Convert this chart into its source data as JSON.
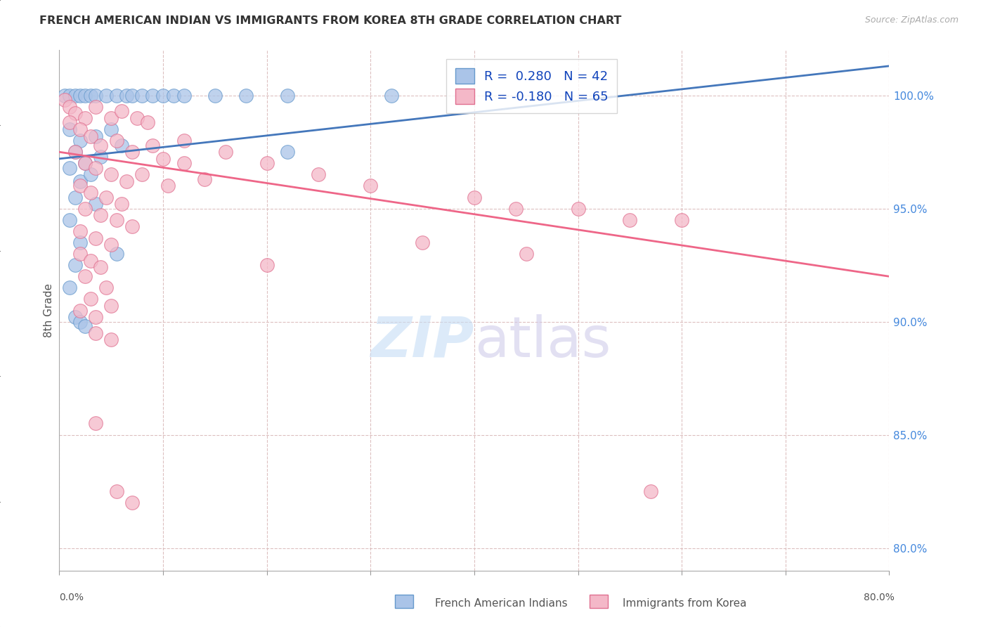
{
  "title": "FRENCH AMERICAN INDIAN VS IMMIGRANTS FROM KOREA 8TH GRADE CORRELATION CHART",
  "source": "Source: ZipAtlas.com",
  "ylabel": "8th Grade",
  "xmin": 0.0,
  "xmax": 80.0,
  "ymin": 79.0,
  "ymax": 102.0,
  "yticks": [
    80.0,
    85.0,
    90.0,
    95.0,
    100.0
  ],
  "ytick_labels": [
    "80.0%",
    "85.0%",
    "90.0%",
    "95.0%",
    "100.0%"
  ],
  "xticks": [
    0.0,
    10.0,
    20.0,
    30.0,
    40.0,
    50.0,
    60.0,
    70.0,
    80.0
  ],
  "blue_color": "#aac4e8",
  "pink_color": "#f4b8c8",
  "blue_edge_color": "#6699cc",
  "pink_edge_color": "#e07090",
  "blue_line_color": "#4477bb",
  "pink_line_color": "#ee6688",
  "grid_color": "#ddc0c0",
  "blue_line_x0": 0.0,
  "blue_line_y0": 97.2,
  "blue_line_x1": 80.0,
  "blue_line_y1": 101.3,
  "pink_line_x0": 0.0,
  "pink_line_y0": 97.5,
  "pink_line_x1": 80.0,
  "pink_line_y1": 92.0,
  "blue_scatter": [
    [
      0.5,
      100.0
    ],
    [
      1.0,
      100.0
    ],
    [
      1.5,
      100.0
    ],
    [
      2.0,
      100.0
    ],
    [
      2.5,
      100.0
    ],
    [
      3.0,
      100.0
    ],
    [
      3.5,
      100.0
    ],
    [
      4.5,
      100.0
    ],
    [
      5.5,
      100.0
    ],
    [
      6.5,
      100.0
    ],
    [
      7.0,
      100.0
    ],
    [
      8.0,
      100.0
    ],
    [
      9.0,
      100.0
    ],
    [
      10.0,
      100.0
    ],
    [
      11.0,
      100.0
    ],
    [
      12.0,
      100.0
    ],
    [
      15.0,
      100.0
    ],
    [
      18.0,
      100.0
    ],
    [
      22.0,
      100.0
    ],
    [
      32.0,
      100.0
    ],
    [
      1.0,
      98.5
    ],
    [
      2.0,
      98.0
    ],
    [
      3.5,
      98.2
    ],
    [
      5.0,
      98.5
    ],
    [
      1.5,
      97.5
    ],
    [
      2.5,
      97.0
    ],
    [
      4.0,
      97.3
    ],
    [
      6.0,
      97.8
    ],
    [
      1.0,
      96.8
    ],
    [
      2.0,
      96.2
    ],
    [
      3.0,
      96.5
    ],
    [
      1.5,
      95.5
    ],
    [
      3.5,
      95.2
    ],
    [
      1.0,
      94.5
    ],
    [
      2.0,
      93.5
    ],
    [
      5.5,
      93.0
    ],
    [
      1.5,
      92.5
    ],
    [
      1.0,
      91.5
    ],
    [
      1.5,
      90.2
    ],
    [
      2.0,
      90.0
    ],
    [
      2.5,
      89.8
    ],
    [
      22.0,
      97.5
    ]
  ],
  "pink_scatter": [
    [
      0.5,
      99.8
    ],
    [
      1.0,
      99.5
    ],
    [
      1.5,
      99.2
    ],
    [
      2.5,
      99.0
    ],
    [
      3.5,
      99.5
    ],
    [
      5.0,
      99.0
    ],
    [
      6.0,
      99.3
    ],
    [
      7.5,
      99.0
    ],
    [
      8.5,
      98.8
    ],
    [
      1.0,
      98.8
    ],
    [
      2.0,
      98.5
    ],
    [
      3.0,
      98.2
    ],
    [
      4.0,
      97.8
    ],
    [
      5.5,
      98.0
    ],
    [
      7.0,
      97.5
    ],
    [
      9.0,
      97.8
    ],
    [
      10.0,
      97.2
    ],
    [
      12.0,
      97.0
    ],
    [
      1.5,
      97.5
    ],
    [
      2.5,
      97.0
    ],
    [
      3.5,
      96.8
    ],
    [
      5.0,
      96.5
    ],
    [
      6.5,
      96.2
    ],
    [
      8.0,
      96.5
    ],
    [
      10.5,
      96.0
    ],
    [
      14.0,
      96.3
    ],
    [
      2.0,
      96.0
    ],
    [
      3.0,
      95.7
    ],
    [
      4.5,
      95.5
    ],
    [
      6.0,
      95.2
    ],
    [
      2.5,
      95.0
    ],
    [
      4.0,
      94.7
    ],
    [
      5.5,
      94.5
    ],
    [
      7.0,
      94.2
    ],
    [
      2.0,
      94.0
    ],
    [
      3.5,
      93.7
    ],
    [
      5.0,
      93.4
    ],
    [
      2.0,
      93.0
    ],
    [
      3.0,
      92.7
    ],
    [
      4.0,
      92.4
    ],
    [
      2.5,
      92.0
    ],
    [
      4.5,
      91.5
    ],
    [
      3.0,
      91.0
    ],
    [
      5.0,
      90.7
    ],
    [
      2.0,
      90.5
    ],
    [
      3.5,
      90.2
    ],
    [
      3.5,
      89.5
    ],
    [
      5.0,
      89.2
    ],
    [
      3.5,
      85.5
    ],
    [
      5.5,
      82.5
    ],
    [
      7.0,
      82.0
    ],
    [
      44.0,
      95.0
    ],
    [
      55.0,
      94.5
    ],
    [
      57.0,
      82.5
    ],
    [
      12.0,
      98.0
    ],
    [
      16.0,
      97.5
    ],
    [
      20.0,
      97.0
    ],
    [
      25.0,
      96.5
    ],
    [
      30.0,
      96.0
    ],
    [
      40.0,
      95.5
    ],
    [
      50.0,
      95.0
    ],
    [
      60.0,
      94.5
    ],
    [
      35.0,
      93.5
    ],
    [
      45.0,
      93.0
    ],
    [
      20.0,
      92.5
    ]
  ]
}
